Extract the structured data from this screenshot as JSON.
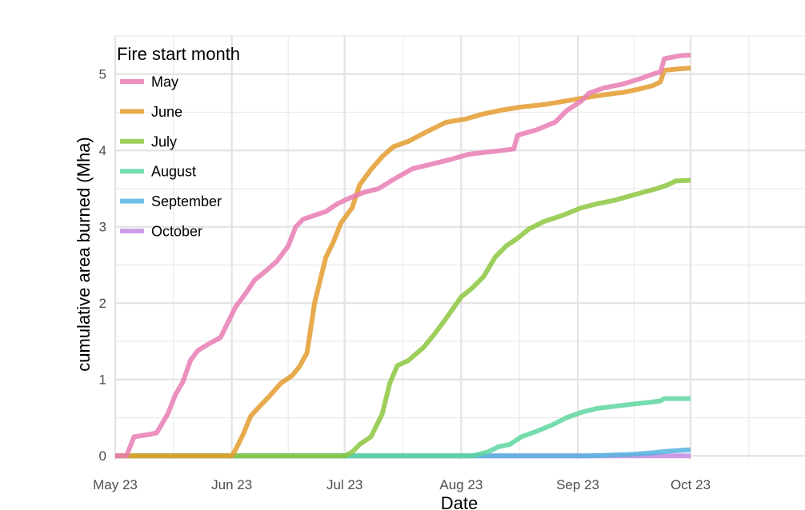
{
  "chart_data": {
    "type": "line",
    "xlabel": "Date",
    "ylabel": "cumulative area burned (Mha)",
    "x_axis_type": "date",
    "xlim": [
      "2023-05-23",
      "2023-10-23"
    ],
    "ylim": [
      -0.05,
      5.5
    ],
    "x_ticks": [
      {
        "date": "2023-05-23",
        "label": "May 23"
      },
      {
        "date": "2023-06-23",
        "label": "Jun 23"
      },
      {
        "date": "2023-07-23",
        "label": "Jul 23"
      },
      {
        "date": "2023-08-23",
        "label": "Aug 23"
      },
      {
        "date": "2023-09-23",
        "label": "Sep 23"
      },
      {
        "date": "2023-10-23",
        "label": "Oct 23"
      }
    ],
    "y_ticks": [
      0,
      1,
      2,
      3,
      4,
      5
    ],
    "grid": true,
    "legend": {
      "title": "Fire start month",
      "position": "top-left"
    },
    "series": [
      {
        "name": "May",
        "color": "#E87CB4",
        "points": [
          [
            "2023-05-23",
            0
          ],
          [
            "2023-05-26",
            0
          ],
          [
            "2023-05-28",
            0.25
          ],
          [
            "2023-06-01",
            0.28
          ],
          [
            "2023-06-03",
            0.3
          ],
          [
            "2023-06-06",
            0.55
          ],
          [
            "2023-06-08",
            0.8
          ],
          [
            "2023-06-10",
            0.97
          ],
          [
            "2023-06-12",
            1.25
          ],
          [
            "2023-06-14",
            1.38
          ],
          [
            "2023-06-17",
            1.47
          ],
          [
            "2023-06-20",
            1.55
          ],
          [
            "2023-06-22",
            1.75
          ],
          [
            "2023-06-24",
            1.95
          ],
          [
            "2023-06-27",
            2.15
          ],
          [
            "2023-06-29",
            2.3
          ],
          [
            "2023-07-02",
            2.42
          ],
          [
            "2023-07-05",
            2.55
          ],
          [
            "2023-07-08",
            2.75
          ],
          [
            "2023-07-10",
            3.0
          ],
          [
            "2023-07-12",
            3.1
          ],
          [
            "2023-07-15",
            3.15
          ],
          [
            "2023-07-18",
            3.2
          ],
          [
            "2023-07-21",
            3.3
          ],
          [
            "2023-07-24",
            3.37
          ],
          [
            "2023-07-28",
            3.45
          ],
          [
            "2023-08-01",
            3.5
          ],
          [
            "2023-08-05",
            3.62
          ],
          [
            "2023-08-10",
            3.76
          ],
          [
            "2023-08-15",
            3.82
          ],
          [
            "2023-08-20",
            3.88
          ],
          [
            "2023-08-25",
            3.95
          ],
          [
            "2023-08-30",
            3.98
          ],
          [
            "2023-09-03",
            4.0
          ],
          [
            "2023-09-06",
            4.02
          ],
          [
            "2023-09-07",
            4.2
          ],
          [
            "2023-09-12",
            4.27
          ],
          [
            "2023-09-17",
            4.37
          ],
          [
            "2023-09-20",
            4.52
          ],
          [
            "2023-09-24",
            4.65
          ],
          [
            "2023-09-26",
            4.75
          ],
          [
            "2023-09-30",
            4.82
          ],
          [
            "2023-10-05",
            4.87
          ],
          [
            "2023-10-09",
            4.93
          ],
          [
            "2023-10-13",
            5.0
          ],
          [
            "2023-10-15",
            5.03
          ],
          [
            "2023-10-16",
            5.2
          ],
          [
            "2023-10-20",
            5.24
          ],
          [
            "2023-10-23",
            5.25
          ]
        ]
      },
      {
        "name": "June",
        "color": "#E39C2F",
        "points": [
          [
            "2023-05-23",
            0
          ],
          [
            "2023-06-23",
            0
          ],
          [
            "2023-06-24",
            0.08
          ],
          [
            "2023-06-26",
            0.28
          ],
          [
            "2023-06-28",
            0.52
          ],
          [
            "2023-07-01",
            0.68
          ],
          [
            "2023-07-03",
            0.78
          ],
          [
            "2023-07-06",
            0.95
          ],
          [
            "2023-07-09",
            1.05
          ],
          [
            "2023-07-11",
            1.17
          ],
          [
            "2023-07-13",
            1.35
          ],
          [
            "2023-07-15",
            2.0
          ],
          [
            "2023-07-18",
            2.6
          ],
          [
            "2023-07-20",
            2.8
          ],
          [
            "2023-07-22",
            3.05
          ],
          [
            "2023-07-25",
            3.25
          ],
          [
            "2023-07-27",
            3.55
          ],
          [
            "2023-07-30",
            3.75
          ],
          [
            "2023-08-02",
            3.92
          ],
          [
            "2023-08-05",
            4.05
          ],
          [
            "2023-08-09",
            4.12
          ],
          [
            "2023-08-14",
            4.25
          ],
          [
            "2023-08-19",
            4.37
          ],
          [
            "2023-08-24",
            4.41
          ],
          [
            "2023-08-29",
            4.48
          ],
          [
            "2023-09-03",
            4.53
          ],
          [
            "2023-09-08",
            4.57
          ],
          [
            "2023-09-14",
            4.6
          ],
          [
            "2023-09-20",
            4.65
          ],
          [
            "2023-09-26",
            4.7
          ],
          [
            "2023-09-30",
            4.73
          ],
          [
            "2023-10-05",
            4.76
          ],
          [
            "2023-10-09",
            4.8
          ],
          [
            "2023-10-13",
            4.85
          ],
          [
            "2023-10-15",
            4.9
          ],
          [
            "2023-10-16",
            5.05
          ],
          [
            "2023-10-20",
            5.07
          ],
          [
            "2023-10-23",
            5.08
          ]
        ]
      },
      {
        "name": "July",
        "color": "#8DC63F",
        "points": [
          [
            "2023-05-23",
            0
          ],
          [
            "2023-07-23",
            0
          ],
          [
            "2023-07-25",
            0.05
          ],
          [
            "2023-07-27",
            0.15
          ],
          [
            "2023-07-30",
            0.25
          ],
          [
            "2023-08-02",
            0.55
          ],
          [
            "2023-08-04",
            0.95
          ],
          [
            "2023-08-06",
            1.18
          ],
          [
            "2023-08-09",
            1.25
          ],
          [
            "2023-08-13",
            1.42
          ],
          [
            "2023-08-16",
            1.6
          ],
          [
            "2023-08-19",
            1.8
          ],
          [
            "2023-08-23",
            2.08
          ],
          [
            "2023-08-26",
            2.2
          ],
          [
            "2023-08-29",
            2.35
          ],
          [
            "2023-09-01",
            2.6
          ],
          [
            "2023-09-04",
            2.75
          ],
          [
            "2023-09-07",
            2.85
          ],
          [
            "2023-09-10",
            2.97
          ],
          [
            "2023-09-14",
            3.07
          ],
          [
            "2023-09-19",
            3.15
          ],
          [
            "2023-09-24",
            3.25
          ],
          [
            "2023-09-28",
            3.3
          ],
          [
            "2023-10-03",
            3.35
          ],
          [
            "2023-10-08",
            3.42
          ],
          [
            "2023-10-14",
            3.5
          ],
          [
            "2023-10-17",
            3.55
          ],
          [
            "2023-10-19",
            3.6
          ],
          [
            "2023-10-23",
            3.61
          ]
        ]
      },
      {
        "name": "August",
        "color": "#5ED6A0",
        "points": [
          [
            "2023-05-23",
            0
          ],
          [
            "2023-08-26",
            0
          ],
          [
            "2023-08-30",
            0.05
          ],
          [
            "2023-09-02",
            0.12
          ],
          [
            "2023-09-05",
            0.15
          ],
          [
            "2023-09-08",
            0.25
          ],
          [
            "2023-09-12",
            0.32
          ],
          [
            "2023-09-16",
            0.4
          ],
          [
            "2023-09-20",
            0.5
          ],
          [
            "2023-09-24",
            0.57
          ],
          [
            "2023-09-28",
            0.62
          ],
          [
            "2023-10-03",
            0.65
          ],
          [
            "2023-10-08",
            0.68
          ],
          [
            "2023-10-12",
            0.7
          ],
          [
            "2023-10-15",
            0.72
          ],
          [
            "2023-10-16",
            0.75
          ],
          [
            "2023-10-23",
            0.75
          ]
        ]
      },
      {
        "name": "September",
        "color": "#56B4E0",
        "points": [
          [
            "2023-05-23",
            0
          ],
          [
            "2023-09-26",
            0
          ],
          [
            "2023-10-02",
            0.01
          ],
          [
            "2023-10-08",
            0.02
          ],
          [
            "2023-10-13",
            0.04
          ],
          [
            "2023-10-17",
            0.06
          ],
          [
            "2023-10-20",
            0.07
          ],
          [
            "2023-10-23",
            0.08
          ]
        ]
      },
      {
        "name": "October",
        "color": "#C68CE0",
        "points": [
          [
            "2023-05-23",
            0
          ],
          [
            "2023-10-23",
            0
          ]
        ]
      }
    ]
  }
}
